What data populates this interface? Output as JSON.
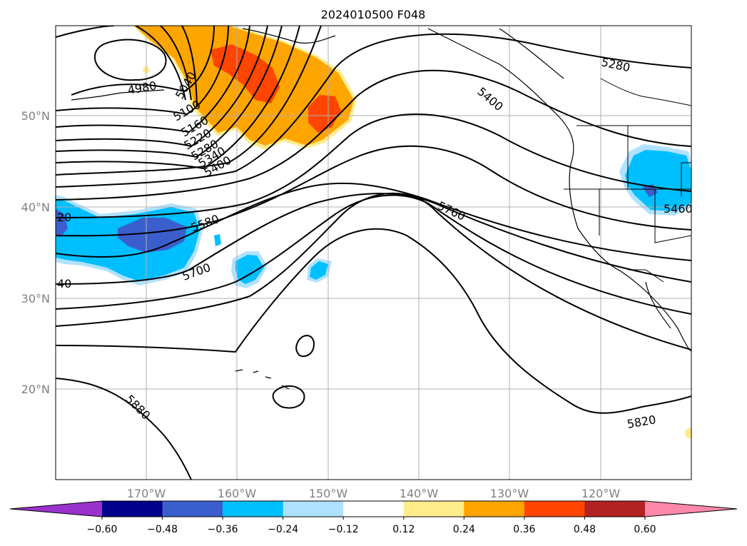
{
  "title": "2024010500 F048",
  "map": {
    "lat_labels": [
      "50°N",
      "40°N",
      "30°N",
      "20°N"
    ],
    "lon_labels": [
      "170°W",
      "160°W",
      "150°W",
      "140°W",
      "130°W",
      "120°W"
    ],
    "contour_labels": [
      "4980",
      "5040",
      "5100",
      "5160",
      "5220",
      "5280",
      "5340",
      "5400",
      "5580",
      "5700",
      "5760",
      "5880",
      "5820",
      "5280",
      "5400",
      "5460",
      "20",
      "40"
    ]
  },
  "colorbar": {
    "ticks": [
      "−0.60",
      "−0.48",
      "−0.36",
      "−0.24",
      "−0.12",
      "0.12",
      "0.24",
      "0.36",
      "0.48",
      "0.60"
    ],
    "colors": [
      "#9932cc",
      "#00008b",
      "#3a5fcd",
      "#00bfff",
      "#b0e2ff",
      "#ffffff",
      "#ffec8b",
      "#ffa500",
      "#ff4500",
      "#b22222",
      "#ff88aa"
    ]
  },
  "colors": {
    "orange": "#ffa500",
    "red_orange": "#ff4500",
    "yellow": "#ffec8b",
    "sky": "#00bfff",
    "light_sky": "#b0e2ff",
    "royal_blue": "#3a5fcd"
  }
}
